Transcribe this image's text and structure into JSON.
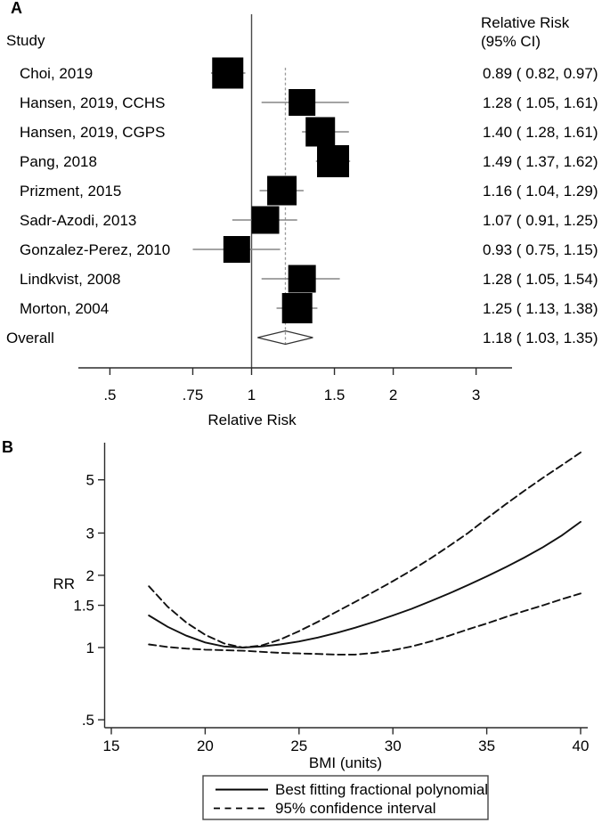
{
  "chart_data": [
    {
      "type": "forest",
      "panel_label": "A",
      "study_header": "Study",
      "effect_header_line1": "Relative Risk",
      "effect_header_line2": "(95% CI)",
      "xlabel": "Relative Risk",
      "x_scale": "log",
      "x_ticks": [
        0.5,
        0.75,
        1,
        1.5,
        2,
        3
      ],
      "x_tick_labels": [
        ".5",
        ".75",
        "1",
        "1.5",
        "2",
        "3"
      ],
      "ref_line": 1,
      "overall_dashed_line": 1.18,
      "studies": [
        {
          "label": "Choi, 2019",
          "rr": 0.89,
          "ci_low": 0.82,
          "ci_high": 0.97,
          "display": "0.89 ( 0.82, 0.97)",
          "box_size": 35
        },
        {
          "label": "Hansen, 2019, CCHS",
          "rr": 1.28,
          "ci_low": 1.05,
          "ci_high": 1.61,
          "display": "1.28 ( 1.05, 1.61)",
          "box_size": 30
        },
        {
          "label": "Hansen, 2019, CGPS",
          "rr": 1.4,
          "ci_low": 1.28,
          "ci_high": 1.61,
          "display": "1.40 ( 1.28, 1.61)",
          "box_size": 33
        },
        {
          "label": "Pang, 2018",
          "rr": 1.49,
          "ci_low": 1.37,
          "ci_high": 1.62,
          "display": "1.49 ( 1.37, 1.62)",
          "box_size": 36
        },
        {
          "label": "Prizment, 2015",
          "rr": 1.16,
          "ci_low": 1.04,
          "ci_high": 1.29,
          "display": "1.16 ( 1.04, 1.29)",
          "box_size": 33
        },
        {
          "label": "Sadr-Azodi, 2013",
          "rr": 1.07,
          "ci_low": 0.91,
          "ci_high": 1.25,
          "display": "1.07 ( 0.91, 1.25)",
          "box_size": 31
        },
        {
          "label": "Gonzalez-Perez, 2010",
          "rr": 0.93,
          "ci_low": 0.75,
          "ci_high": 1.15,
          "display": "0.93 ( 0.75, 1.15)",
          "box_size": 30
        },
        {
          "label": "Lindkvist, 2008",
          "rr": 1.28,
          "ci_low": 1.05,
          "ci_high": 1.54,
          "display": "1.28 ( 1.05, 1.54)",
          "box_size": 31
        },
        {
          "label": "Morton, 2004",
          "rr": 1.25,
          "ci_low": 1.13,
          "ci_high": 1.38,
          "display": "1.25 ( 1.13, 1.38)",
          "box_size": 34
        }
      ],
      "overall": {
        "label": "Overall",
        "rr": 1.18,
        "ci_low": 1.03,
        "ci_high": 1.35,
        "display": "1.18 ( 1.03, 1.35)"
      }
    },
    {
      "type": "line",
      "panel_label": "B",
      "xlabel": "BMI (units)",
      "ylabel": "RR",
      "x_scale": "linear",
      "y_scale": "log",
      "x_ticks": [
        15,
        20,
        25,
        30,
        35,
        40
      ],
      "y_ticks": [
        0.5,
        1,
        1.5,
        2,
        3,
        5
      ],
      "y_tick_labels": [
        ".5",
        "1",
        "1.5",
        "2",
        "3",
        "5"
      ],
      "x_range": [
        15,
        40
      ],
      "x": [
        17,
        18,
        19,
        20,
        21,
        22,
        23,
        24,
        25,
        26,
        27,
        28,
        29,
        30,
        31,
        32,
        33,
        34,
        35,
        36,
        37,
        38,
        39,
        40
      ],
      "series": [
        {
          "name": "Best fitting fractional polynomial",
          "style": "solid",
          "values": [
            1.36,
            1.22,
            1.12,
            1.05,
            1.01,
            1.0,
            1.01,
            1.03,
            1.06,
            1.1,
            1.15,
            1.21,
            1.28,
            1.36,
            1.45,
            1.56,
            1.68,
            1.82,
            1.98,
            2.16,
            2.37,
            2.62,
            2.93,
            3.34
          ]
        },
        {
          "name": "95% CI upper bound",
          "style": "dashed",
          "values": [
            1.8,
            1.48,
            1.27,
            1.13,
            1.04,
            1.0,
            1.02,
            1.08,
            1.17,
            1.28,
            1.41,
            1.55,
            1.71,
            1.89,
            2.1,
            2.35,
            2.65,
            3.0,
            3.45,
            3.95,
            4.5,
            5.1,
            5.75,
            6.5
          ]
        },
        {
          "name": "95% CI lower bound",
          "style": "dashed",
          "values": [
            1.03,
            1.005,
            0.99,
            0.98,
            0.975,
            0.97,
            0.96,
            0.95,
            0.945,
            0.94,
            0.935,
            0.935,
            0.95,
            0.975,
            1.01,
            1.06,
            1.12,
            1.19,
            1.26,
            1.34,
            1.42,
            1.5,
            1.59,
            1.68
          ]
        }
      ],
      "legend": {
        "position": "bottom",
        "entries": [
          "Best fitting fractional polynomial",
          "95% confidence interval"
        ]
      }
    }
  ]
}
